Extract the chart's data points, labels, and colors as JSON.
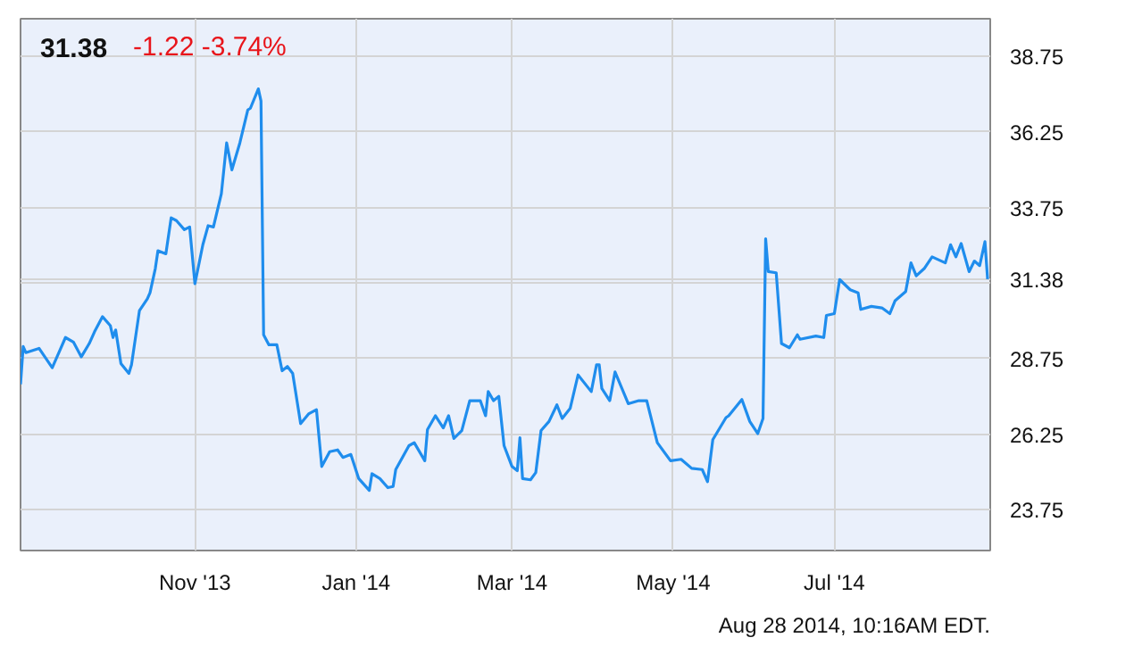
{
  "chart_data": {
    "type": "line",
    "title": "31.38",
    "subtitle": "-1.22  -3.74%",
    "annotations": [
      "Aug 28 2014, 10:16AM EDT."
    ],
    "x": [
      "2013-08-27",
      "2013-08-28",
      "2013-08-29",
      "2013-09-03",
      "2013-09-08",
      "2013-09-11",
      "2013-09-13",
      "2013-09-16",
      "2013-09-19",
      "2013-09-22",
      "2013-09-24",
      "2013-09-27",
      "2013-09-30",
      "2013-10-01",
      "2013-10-02",
      "2013-10-04",
      "2013-10-07",
      "2013-10-08",
      "2013-10-11",
      "2013-10-14",
      "2013-10-15",
      "2013-10-17",
      "2013-10-18",
      "2013-10-21",
      "2013-10-23",
      "2013-10-25",
      "2013-10-28",
      "2013-10-30",
      "2013-11-01",
      "2013-11-04",
      "2013-11-06",
      "2013-11-08",
      "2013-11-11",
      "2013-11-13",
      "2013-11-15",
      "2013-11-18",
      "2013-11-21",
      "2013-11-22",
      "2013-11-25",
      "2013-11-26",
      "2013-11-27",
      "2013-11-29",
      "2013-12-02",
      "2013-12-04",
      "2013-12-06",
      "2013-12-08",
      "2013-12-11",
      "2013-12-14",
      "2013-12-17",
      "2013-12-19",
      "2013-12-22",
      "2013-12-25",
      "2013-12-27",
      "2013-12-30",
      "2014-01-02",
      "2014-01-06",
      "2014-01-07",
      "2014-01-10",
      "2014-01-13",
      "2014-01-15",
      "2014-01-16",
      "2014-01-21",
      "2014-01-23",
      "2014-01-27",
      "2014-01-28",
      "2014-01-31",
      "2014-02-03",
      "2014-02-05",
      "2014-02-07",
      "2014-02-10",
      "2014-02-13",
      "2014-02-17",
      "2014-02-19",
      "2014-02-20",
      "2014-02-22",
      "2014-02-24",
      "2014-02-26",
      "2014-03-01",
      "2014-03-03",
      "2014-03-04",
      "2014-03-05",
      "2014-03-08",
      "2014-03-10",
      "2014-03-12",
      "2014-03-15",
      "2014-03-18",
      "2014-03-20",
      "2014-03-23",
      "2014-03-26",
      "2014-03-31",
      "2014-04-02",
      "2014-04-03",
      "2014-04-04",
      "2014-04-07",
      "2014-04-09",
      "2014-04-14",
      "2014-04-18",
      "2014-04-21",
      "2014-04-25",
      "2014-04-30",
      "2014-05-04",
      "2014-05-08",
      "2014-05-12",
      "2014-05-14",
      "2014-05-16",
      "2014-05-21",
      "2014-05-22",
      "2014-05-27",
      "2014-05-30",
      "2014-06-02",
      "2014-06-04",
      "2014-06-05",
      "2014-06-06",
      "2014-06-09",
      "2014-06-11",
      "2014-06-14",
      "2014-06-17",
      "2014-06-18",
      "2014-06-24",
      "2014-06-27",
      "2014-06-28",
      "2014-07-01",
      "2014-07-03",
      "2014-07-07",
      "2014-07-10",
      "2014-07-11",
      "2014-07-15",
      "2014-07-19",
      "2014-07-22",
      "2014-07-24",
      "2014-07-28",
      "2014-07-30",
      "2014-08-01",
      "2014-08-04",
      "2014-08-07",
      "2014-08-12",
      "2014-08-14",
      "2014-08-16",
      "2014-08-18",
      "2014-08-21",
      "2014-08-23",
      "2014-08-25",
      "2014-08-27",
      "2014-08-28"
    ],
    "series": [
      {
        "color": "#1f8ded",
        "values": [
          27.9,
          29.15,
          28.95,
          29.09,
          28.45,
          29.05,
          29.45,
          29.3,
          28.81,
          29.25,
          29.64,
          30.14,
          29.84,
          29.45,
          29.7,
          28.59,
          28.26,
          28.55,
          30.34,
          30.73,
          30.93,
          31.73,
          32.32,
          32.22,
          33.41,
          33.32,
          33.02,
          33.11,
          31.23,
          32.52,
          33.15,
          33.11,
          34.21,
          35.89,
          35.0,
          35.89,
          36.98,
          37.04,
          37.68,
          37.28,
          29.54,
          29.21,
          29.21,
          28.35,
          28.49,
          28.26,
          26.6,
          26.92,
          27.06,
          25.18,
          25.67,
          25.73,
          25.48,
          25.58,
          24.78,
          24.39,
          24.94,
          24.78,
          24.48,
          24.52,
          25.08,
          25.87,
          25.97,
          25.37,
          26.4,
          26.86,
          26.46,
          26.86,
          26.11,
          26.37,
          27.36,
          27.36,
          26.86,
          27.66,
          27.36,
          27.5,
          25.87,
          25.18,
          25.04,
          26.13,
          24.78,
          24.74,
          24.98,
          26.37,
          26.67,
          27.22,
          26.77,
          27.1,
          28.21,
          27.66,
          28.55,
          28.55,
          27.76,
          27.36,
          28.31,
          27.26,
          27.36,
          27.36,
          25.97,
          25.37,
          25.42,
          25.12,
          25.08,
          24.68,
          26.07,
          26.8,
          26.86,
          27.4,
          26.67,
          26.27,
          26.77,
          32.72,
          31.63,
          31.59,
          29.25,
          29.11,
          29.54,
          29.39,
          29.5,
          29.45,
          30.18,
          30.24,
          31.37,
          31.03,
          30.93,
          30.38,
          30.48,
          30.43,
          30.24,
          30.67,
          30.97,
          31.92,
          31.49,
          31.73,
          32.12,
          31.92,
          32.52,
          32.12,
          32.56,
          31.63,
          31.98,
          31.83,
          32.62,
          31.38
        ]
      }
    ],
    "xlim": [
      "2013-08-27",
      "2014-08-29"
    ],
    "ylim": [
      22.4,
      40.0
    ],
    "xticks": [
      {
        "value": "2013-11-01",
        "label": "Nov '13"
      },
      {
        "value": "2014-01-01",
        "label": "Jan '14"
      },
      {
        "value": "2014-03-01",
        "label": "Mar '14"
      },
      {
        "value": "2014-05-01",
        "label": "May '14"
      },
      {
        "value": "2014-07-01",
        "label": "Jul '14"
      }
    ],
    "yticks": [
      23.75,
      26.25,
      28.75,
      {
        "value": 31.25,
        "label": null
      },
      31.38,
      33.75,
      36.25,
      38.75
    ],
    "grid": true
  }
}
